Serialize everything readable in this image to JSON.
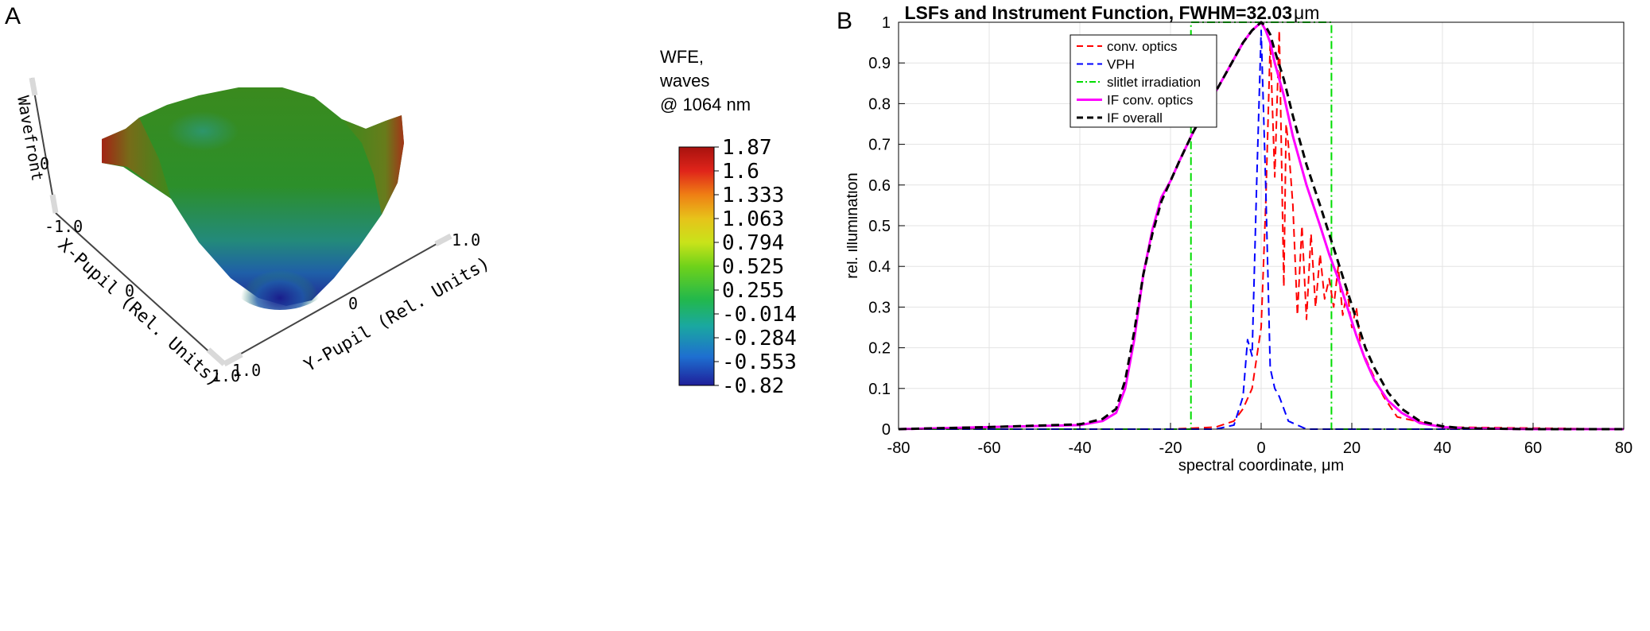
{
  "panelA": {
    "label": "A",
    "axes": {
      "z_label": "Wavefront",
      "z_tick": "0",
      "x_label": "X-Pupil (Rel. Units)",
      "x_ticks": [
        "-1.0",
        "0",
        "1.0"
      ],
      "y_label": "Y-Pupil (Rel. Units)",
      "y_ticks": [
        "1.0",
        "0",
        "1.0"
      ]
    },
    "colorbar": {
      "title_lines": [
        "WFE,",
        "waves",
        "@ 1064 nm"
      ],
      "ticks": [
        "1.87",
        "1.6",
        "1.333",
        "1.063",
        "0.794",
        "0.525",
        "0.255",
        "-0.014",
        "-0.284",
        "-0.553",
        "-0.82"
      ],
      "min": -0.82,
      "max": 1.87,
      "gradient": [
        "#1f1f9a",
        "#1e6fd0",
        "#1aa89a",
        "#22b84c",
        "#6fd21a",
        "#c9e31a",
        "#e7c31a",
        "#ef7f14",
        "#e0241a",
        "#a8120e"
      ]
    }
  },
  "panelB": {
    "label": "B",
    "legend": {
      "items": [
        "conv. optics",
        "VPH",
        "slitlet irradiation",
        "IF conv. optics",
        "IF overall"
      ]
    }
  },
  "chart_data": [
    {
      "type": "surface",
      "title": "",
      "zlabel": "Wavefront",
      "xlabel": "X-Pupil (Rel. Units)",
      "ylabel": "Y-Pupil (Rel. Units)",
      "xlim": [
        -1.0,
        1.0
      ],
      "ylim": [
        -1.0,
        1.0
      ],
      "color_range": [
        -0.82,
        1.87
      ],
      "colorbar_label": "WFE, waves @ 1064 nm"
    },
    {
      "type": "line",
      "title": "LSFs and Instrument Function, FWHM=32.03",
      "title_unit": "μm",
      "xlabel": "spectral coordinate, μm",
      "ylabel": "rel. illumination",
      "xlim": [
        -80,
        80
      ],
      "ylim": [
        0,
        1
      ],
      "x_ticks": [
        -80,
        -60,
        -40,
        -20,
        0,
        20,
        40,
        60,
        80
      ],
      "y_ticks": [
        0,
        0.1,
        0.2,
        0.3,
        0.4,
        0.5,
        0.6,
        0.7,
        0.8,
        0.9,
        1
      ],
      "x_tick_labels": [
        "-80",
        "-60",
        "-40",
        "-20",
        "0",
        "20",
        "40",
        "60",
        "80"
      ],
      "y_tick_labels": [
        "0",
        "0.1",
        "0.2",
        "0.3",
        "0.4",
        "0.5",
        "0.6",
        "0.7",
        "0.8",
        "0.9",
        "1"
      ],
      "grid": true,
      "legend_position": "top-right",
      "series": [
        {
          "name": "conv. optics",
          "color": "#ff0000",
          "style": "dashed",
          "x": [
            -80,
            -20,
            -10,
            -6,
            -4,
            -2,
            0,
            1,
            2,
            3,
            4,
            5,
            5.5,
            6,
            7,
            8,
            9,
            10,
            11,
            12,
            13,
            14,
            15,
            16,
            17,
            18,
            19,
            20,
            21,
            22,
            24,
            27,
            30,
            40,
            80
          ],
          "y": [
            0,
            0,
            0.005,
            0.02,
            0.05,
            0.1,
            0.25,
            0.55,
            0.95,
            0.62,
            0.98,
            0.35,
            0.75,
            0.7,
            0.55,
            0.28,
            0.5,
            0.27,
            0.48,
            0.3,
            0.43,
            0.32,
            0.37,
            0.3,
            0.4,
            0.28,
            0.34,
            0.25,
            0.3,
            0.2,
            0.15,
            0.08,
            0.03,
            0.005,
            0
          ]
        },
        {
          "name": "VPH",
          "color": "#0000ff",
          "style": "dashed",
          "x": [
            -80,
            -10,
            -6,
            -4,
            -3,
            -2,
            -1,
            0,
            1,
            2,
            3,
            4,
            6,
            10,
            80
          ],
          "y": [
            0,
            0,
            0.01,
            0.08,
            0.22,
            0.18,
            0.6,
            0.98,
            0.6,
            0.15,
            0.1,
            0.08,
            0.02,
            0,
            0
          ]
        },
        {
          "name": "slitlet irradiation",
          "color": "#00dd00",
          "style": "dashdot",
          "x": [
            -80,
            -15.5,
            -15.5,
            15.5,
            15.5,
            80
          ],
          "y": [
            0,
            0,
            1,
            1,
            0,
            0
          ]
        },
        {
          "name": "IF conv. optics",
          "color": "#ff00ff",
          "style": "solid",
          "x": [
            -80,
            -60,
            -40,
            -35,
            -32,
            -30,
            -28,
            -26,
            -24,
            -22,
            -20,
            -18,
            -15,
            -12,
            -9,
            -6,
            -4,
            -2,
            0,
            1,
            2,
            3,
            5,
            7,
            10,
            13,
            15,
            17,
            19,
            21,
            23,
            25,
            28,
            31,
            35,
            40,
            45,
            60,
            80
          ],
          "y": [
            0,
            0.005,
            0.01,
            0.02,
            0.04,
            0.1,
            0.22,
            0.38,
            0.49,
            0.57,
            0.61,
            0.66,
            0.73,
            0.79,
            0.85,
            0.91,
            0.95,
            0.98,
            1.0,
            0.98,
            0.95,
            0.9,
            0.82,
            0.72,
            0.6,
            0.5,
            0.43,
            0.37,
            0.3,
            0.23,
            0.17,
            0.12,
            0.07,
            0.04,
            0.015,
            0.005,
            0.002,
            0,
            0
          ]
        },
        {
          "name": "IF overall",
          "color": "#000000",
          "style": "dashed",
          "x": [
            -80,
            -60,
            -40,
            -35,
            -32,
            -30,
            -28,
            -26,
            -24,
            -22,
            -20,
            -18,
            -15,
            -12,
            -9,
            -6,
            -4,
            -2,
            0,
            1,
            2,
            3,
            5,
            7,
            10,
            13,
            15,
            17,
            19,
            21,
            23,
            25,
            28,
            31,
            35,
            40,
            45,
            60,
            80
          ],
          "y": [
            0,
            0.005,
            0.012,
            0.025,
            0.05,
            0.12,
            0.24,
            0.38,
            0.48,
            0.56,
            0.61,
            0.66,
            0.73,
            0.79,
            0.85,
            0.91,
            0.95,
            0.98,
            1.0,
            0.99,
            0.97,
            0.93,
            0.86,
            0.77,
            0.65,
            0.55,
            0.48,
            0.41,
            0.34,
            0.27,
            0.2,
            0.15,
            0.09,
            0.05,
            0.02,
            0.007,
            0.002,
            0,
            0
          ]
        }
      ]
    }
  ]
}
